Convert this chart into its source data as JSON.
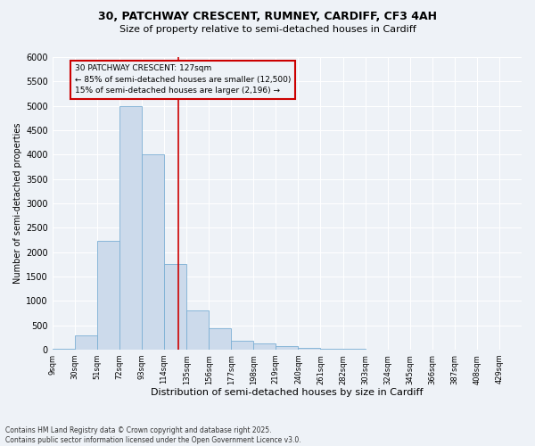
{
  "title1": "30, PATCHWAY CRESCENT, RUMNEY, CARDIFF, CF3 4AH",
  "title2": "Size of property relative to semi-detached houses in Cardiff",
  "xlabel": "Distribution of semi-detached houses by size in Cardiff",
  "ylabel": "Number of semi-detached properties",
  "footer": "Contains HM Land Registry data © Crown copyright and database right 2025.\nContains public sector information licensed under the Open Government Licence v3.0.",
  "bar_color": "#ccdaeb",
  "bar_edge_color": "#7bafd4",
  "annotation_box_color": "#cc0000",
  "vline_color": "#cc0000",
  "property_size": 127,
  "annotation_title": "30 PATCHWAY CRESCENT: 127sqm",
  "annotation_line1": "← 85% of semi-detached houses are smaller (12,500)",
  "annotation_line2": "15% of semi-detached houses are larger (2,196) →",
  "bin_starts": [
    9,
    30,
    51,
    72,
    93,
    114,
    135,
    156,
    177,
    198,
    219,
    240,
    261,
    282,
    303,
    324,
    345,
    366,
    387,
    408,
    429
  ],
  "bin_width": 21,
  "bar_heights": [
    25,
    300,
    2230,
    5000,
    4000,
    1750,
    800,
    430,
    175,
    120,
    65,
    45,
    25,
    15,
    8,
    5,
    3,
    2,
    1,
    1,
    0
  ],
  "ylim": [
    0,
    6000
  ],
  "yticks": [
    0,
    500,
    1000,
    1500,
    2000,
    2500,
    3000,
    3500,
    4000,
    4500,
    5000,
    5500,
    6000
  ],
  "background_color": "#eef2f7",
  "grid_color": "#ffffff",
  "title_fontsize": 9,
  "subtitle_fontsize": 8
}
